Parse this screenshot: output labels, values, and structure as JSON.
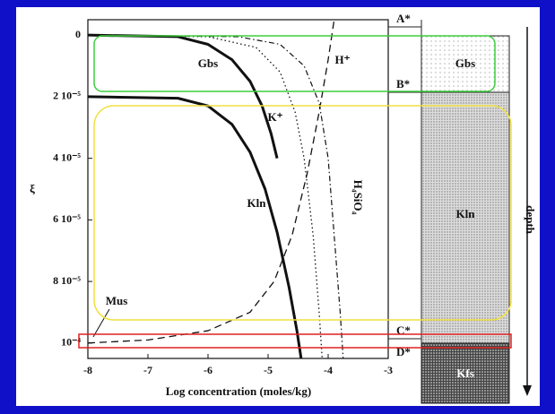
{
  "chart_data": {
    "type": "line",
    "xlabel": "Log concentration (moles/kg)",
    "ylabel": "ξ",
    "xlim": [
      -8,
      -3
    ],
    "xticks": [
      -8,
      -7,
      -6,
      -5,
      -4,
      -3
    ],
    "ylim": [
      -0.5,
      10.5
    ],
    "yticks": [
      0,
      {
        "value": 2,
        "label": "2 10⁻⁵"
      },
      {
        "value": 4,
        "label": "4 10⁻⁵"
      },
      {
        "value": 6,
        "label": "6 10⁻⁵"
      },
      {
        "value": 8,
        "label": "8 10⁻⁵"
      },
      {
        "value": 10,
        "label": "10⁻⁴"
      }
    ],
    "series": [
      {
        "name": "Gbs",
        "style": "solid-bold",
        "x": [
          -8,
          -6.5,
          -6,
          -5.6,
          -5.3,
          -5.1,
          -4.95,
          -4.85
        ],
        "values": [
          0,
          0.05,
          0.3,
          0.8,
          1.5,
          2.3,
          3.2,
          4
        ]
      },
      {
        "name": "Kln",
        "style": "solid-bold",
        "x": [
          -8,
          -6.5,
          -6,
          -5.6,
          -5.3,
          -5.05,
          -4.85,
          -4.65,
          -4.52,
          -4.45
        ],
        "values": [
          2,
          2.05,
          2.3,
          2.9,
          3.8,
          5,
          6.4,
          8.2,
          9.6,
          10.5
        ]
      },
      {
        "name": "H⁺",
        "style": "dashed",
        "x": [
          -8,
          -7,
          -6,
          -5.3,
          -4.9,
          -4.6,
          -4.35,
          -4.15,
          -4.0,
          -3.9
        ],
        "values": [
          10,
          9.9,
          9.6,
          9.0,
          8.0,
          6.5,
          4.5,
          2.5,
          0.8,
          -0.5
        ]
      },
      {
        "name": "K⁺",
        "style": "dotted",
        "x": [
          -8,
          -6,
          -5.2,
          -4.8,
          -4.55,
          -4.4,
          -4.25,
          -4.15,
          -4.1
        ],
        "values": [
          0,
          0.05,
          0.4,
          1.2,
          2.5,
          4,
          6.5,
          9,
          10.5
        ]
      },
      {
        "name": "H₄SiO₄",
        "style": "dashdot",
        "x": [
          -8,
          -5.5,
          -4.8,
          -4.4,
          -4.15,
          -4.0,
          -3.9,
          -3.8,
          -3.75
        ],
        "values": [
          0,
          0.05,
          0.3,
          1.0,
          2.2,
          4,
          6.5,
          9,
          10.5
        ]
      },
      {
        "name": "Mus",
        "style": "none",
        "x": [],
        "values": []
      }
    ],
    "markers": [
      "A*",
      "B*",
      "C*",
      "D*"
    ],
    "column": {
      "layers": [
        "Gbs",
        "Kln",
        "Kfs"
      ],
      "axis_label": "depth"
    }
  }
}
